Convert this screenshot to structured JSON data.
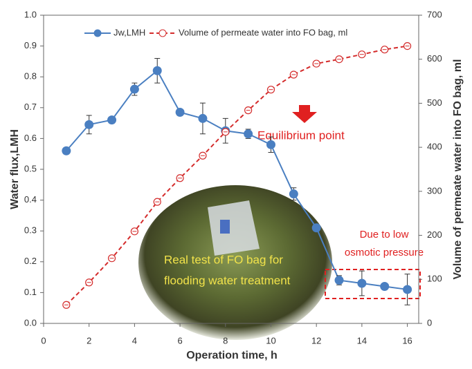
{
  "chart_data": {
    "type": "line",
    "x_label": "Operation time, h",
    "y_label": "Water flux,LMH",
    "y2_label": "Volume of permeate water into FO bag, ml",
    "annotations": [
      "Equilibrium point",
      "Due to low",
      "osmotic pressure",
      "Real test of FO bag for",
      "flooding water treatment"
    ],
    "xlim": [
      0,
      16.5
    ],
    "xticks": [
      0,
      2,
      4,
      6,
      8,
      10,
      12,
      14,
      16
    ],
    "ylim": [
      0,
      1
    ],
    "yticks": [
      {
        "value": 0,
        "label": "0.0"
      },
      0.1,
      0.2,
      0.3,
      0.4,
      0.5,
      0.6,
      0.7,
      0.8,
      0.9,
      {
        "value": 1,
        "label": "1.0"
      }
    ],
    "y2lim": [
      0,
      700
    ],
    "y2ticks": [
      0,
      100,
      200,
      300,
      400,
      500,
      600,
      700
    ],
    "x": [
      1,
      2,
      3,
      4,
      5,
      6,
      7,
      8,
      9,
      10,
      11,
      12,
      13,
      14,
      15,
      16
    ],
    "series": [
      {
        "name": "Jw,LMH",
        "color": "#4a7fc1",
        "values": [
          0.56,
          0.645,
          0.66,
          0.76,
          0.82,
          0.685,
          0.665,
          0.625,
          0.615,
          0.58,
          0.42,
          0.31,
          0.14,
          0.13,
          0.12,
          0.11
        ],
        "errors": [
          0.01,
          0.03,
          0.01,
          0.02,
          0.04,
          0.01,
          0.05,
          0.04,
          0.015,
          0.025,
          0.02,
          0.005,
          0.015,
          0.04,
          0.005,
          0.05
        ]
      },
      {
        "name": "Volume of permeate water into FO bag, ml",
        "color": "#d42b2b",
        "axis": "y2",
        "values": [
          42,
          93,
          148,
          209,
          276,
          330,
          381,
          435,
          484,
          531,
          565,
          590,
          600,
          611,
          622,
          630
        ]
      }
    ]
  }
}
